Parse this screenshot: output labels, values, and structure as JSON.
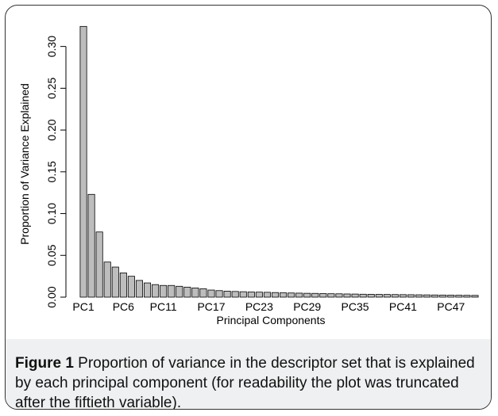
{
  "chart_data": {
    "type": "bar",
    "xlabel": "Principal Components",
    "ylabel": "Proportion of Variance Explained",
    "ylim": [
      0,
      0.33
    ],
    "yticks": [
      0.0,
      0.05,
      0.1,
      0.15,
      0.2,
      0.25,
      0.3
    ],
    "ytick_labels": [
      "0.00",
      "0.05",
      "0.10",
      "0.15",
      "0.20",
      "0.25",
      "0.30"
    ],
    "xtick_labels": [
      "PC1",
      "PC6",
      "PC11",
      "PC17",
      "PC23",
      "PC29",
      "PC35",
      "PC41",
      "PC47"
    ],
    "xtick_indices": [
      1,
      6,
      11,
      17,
      23,
      29,
      35,
      41,
      47
    ],
    "grid": false,
    "bar_color": "#bdbdbd",
    "bar_edge_color": "#000000",
    "values": [
      0.324,
      0.123,
      0.078,
      0.042,
      0.036,
      0.029,
      0.025,
      0.02,
      0.017,
      0.015,
      0.014,
      0.014,
      0.013,
      0.012,
      0.011,
      0.01,
      0.0085,
      0.0078,
      0.0072,
      0.0068,
      0.0065,
      0.0062,
      0.006,
      0.0058,
      0.0055,
      0.0052,
      0.005,
      0.0048,
      0.0046,
      0.0045,
      0.0043,
      0.0041,
      0.004,
      0.0038,
      0.0037,
      0.0035,
      0.0034,
      0.0033,
      0.0032,
      0.0031,
      0.003,
      0.0029,
      0.0028,
      0.0027,
      0.0026,
      0.0025,
      0.0024,
      0.0023,
      0.0022,
      0.0021
    ]
  },
  "caption": {
    "label": "Figure 1",
    "text": " Proportion of variance in the descriptor set that is explained by each principal component (for readability the plot was truncated after the fiftieth variable)."
  }
}
